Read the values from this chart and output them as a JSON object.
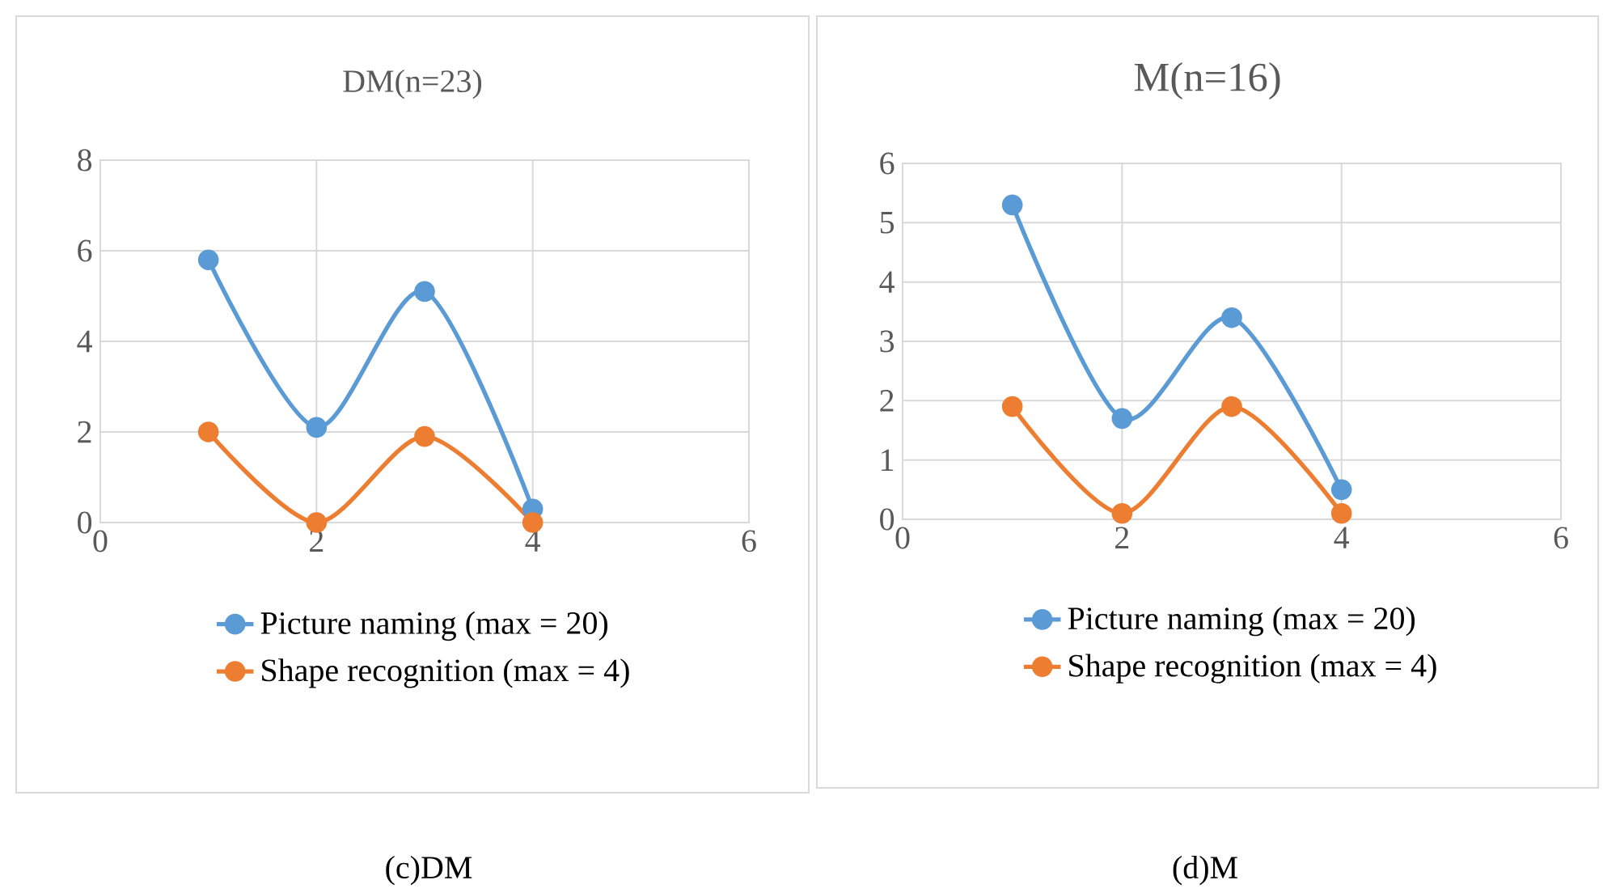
{
  "chart_data": [
    {
      "type": "line",
      "title": "DM(n=23)",
      "x": [
        1,
        2,
        3,
        4
      ],
      "xlim": [
        0,
        6
      ],
      "xticks": [
        0,
        2,
        4,
        6
      ],
      "ylim": [
        0,
        8
      ],
      "yticks": [
        0,
        2,
        4,
        6,
        8
      ],
      "grid": true,
      "legend": "bottom",
      "marker": "circle",
      "line_style": "solid",
      "series": [
        {
          "name": "Picture naming (max = 20)",
          "color": "#5b9bd5",
          "values": [
            5.8,
            2.1,
            5.1,
            0.3
          ]
        },
        {
          "name": "Shape recognition (max = 4)",
          "color": "#ed7d31",
          "values": [
            2.0,
            0,
            1.9,
            0
          ]
        }
      ],
      "annotations": [
        "(c)DM"
      ]
    },
    {
      "type": "line",
      "title": "M(n=16)",
      "x": [
        1,
        2,
        3,
        4
      ],
      "xlim": [
        0,
        6
      ],
      "xticks": [
        0,
        2,
        4,
        6
      ],
      "ylim": [
        0,
        6
      ],
      "yticks": [
        0,
        1,
        2,
        3,
        4,
        5,
        6
      ],
      "grid": true,
      "legend": "bottom",
      "marker": "circle",
      "line_style": "solid",
      "series": [
        {
          "name": "Picture naming (max = 20)",
          "color": "#5b9bd5",
          "values": [
            5.3,
            1.7,
            3.4,
            0.5
          ]
        },
        {
          "name": "Shape recognition (max = 4)",
          "color": "#ed7d31",
          "values": [
            1.9,
            0.1,
            1.9,
            0.1
          ]
        }
      ],
      "annotations": [
        "(d)M"
      ]
    }
  ]
}
